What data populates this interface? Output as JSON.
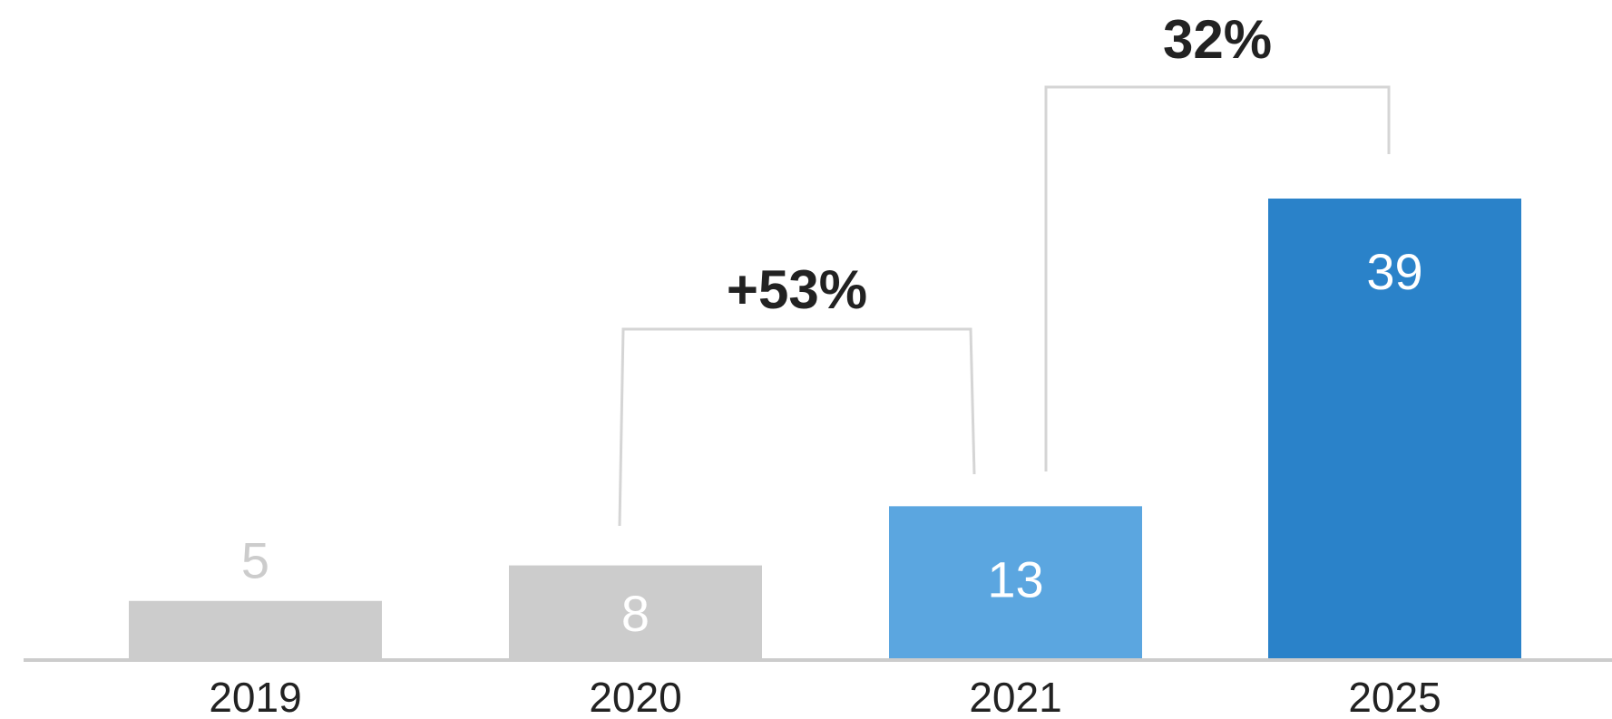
{
  "chart_data": {
    "type": "bar",
    "title": "",
    "xlabel": "",
    "ylabel": "",
    "categories": [
      "2019",
      "2020",
      "2021",
      "2025"
    ],
    "values": [
      5,
      8,
      13,
      39
    ],
    "value_labels": [
      "5",
      "8",
      "13",
      "39"
    ],
    "bar_colors": [
      "#cccccc",
      "#cccccc",
      "#5ba6e0",
      "#2a82c9"
    ],
    "value_label_colors": [
      "#cccccc",
      "#ffffff",
      "#ffffff",
      "#ffffff"
    ],
    "value_label_placement": [
      "above",
      "inside",
      "inside",
      "inside"
    ],
    "ylim": [
      0,
      39
    ],
    "grid": false,
    "legend": "none",
    "annotations": [
      {
        "text": "+53%",
        "from": "2020",
        "to": "2021"
      },
      {
        "text": "32%",
        "from": "2021",
        "to": "2025"
      }
    ],
    "colors": {
      "baseline": "#cccccc",
      "bracket": "#d5d5d5",
      "text": "#222222"
    }
  }
}
